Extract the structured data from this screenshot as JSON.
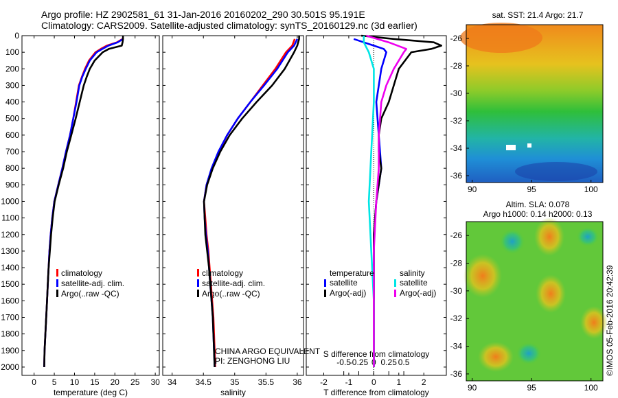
{
  "header": {
    "title_line1": "Argo profile: HZ 2902581_61 31-Jan-2016 20160202_290 30.501S 95.191E",
    "title_line2": "Climatology: CARS2009. Satellite-adjusted climatology: synTS_20160129.nc (3d earlier)"
  },
  "footer": {
    "credit": "©IMOS 05-Feb-2016 20:42:39",
    "institution_line1": "CHINA ARGO EQUIVALENT",
    "institution_line2": "PI: ZENGHONG LIU"
  },
  "colors": {
    "climatology": "#ff0000",
    "satellite": "#0000ff",
    "argo": "#000000",
    "salinity_satellite": "#00e5e5",
    "salinity_argo": "#ee00ee"
  },
  "chart_data": [
    {
      "id": "temperature",
      "type": "line",
      "xlabel": "temperature (deg C)",
      "ylabel": "",
      "xlim": [
        -3,
        31
      ],
      "ylim": [
        2050,
        0
      ],
      "x_ticks": [
        "0",
        "5",
        "10",
        "15",
        "20",
        "25",
        "30"
      ],
      "y_ticks": [
        "0",
        "100",
        "200",
        "300",
        "400",
        "500",
        "600",
        "700",
        "800",
        "900",
        "1000",
        "1100",
        "1200",
        "1300",
        "1400",
        "1500",
        "1600",
        "1700",
        "1800",
        "1900",
        "2000"
      ],
      "legend": [
        "climatology",
        "satellite-adj. clim.",
        "Argo(..raw -QC)"
      ],
      "legend_position": "lower-center",
      "series": [
        {
          "name": "climatology",
          "color": "#ff0000",
          "points": [
            [
              21.9,
              20
            ],
            [
              20.5,
              40
            ],
            [
              18.0,
              60
            ],
            [
              16.5,
              80
            ],
            [
              15.2,
              100
            ],
            [
              13.6,
              150
            ],
            [
              12.6,
              200
            ],
            [
              11.8,
              250
            ],
            [
              11.1,
              300
            ],
            [
              10.4,
              400
            ],
            [
              9.7,
              500
            ],
            [
              8.9,
              600
            ],
            [
              7.9,
              700
            ],
            [
              7.0,
              800
            ],
            [
              6.0,
              900
            ],
            [
              5.0,
              1000
            ],
            [
              4.5,
              1100
            ],
            [
              4.1,
              1200
            ],
            [
              3.8,
              1300
            ],
            [
              3.6,
              1400
            ],
            [
              3.4,
              1500
            ],
            [
              3.2,
              1600
            ],
            [
              3.0,
              1700
            ],
            [
              2.8,
              1800
            ],
            [
              2.6,
              1900
            ],
            [
              2.5,
              2000
            ]
          ]
        },
        {
          "name": "satellite-adj. clim.",
          "color": "#0000ff",
          "points": [
            [
              22.0,
              20
            ],
            [
              20.7,
              40
            ],
            [
              18.4,
              60
            ],
            [
              16.9,
              80
            ],
            [
              15.5,
              100
            ],
            [
              13.8,
              150
            ],
            [
              12.8,
              200
            ],
            [
              11.9,
              250
            ],
            [
              11.2,
              300
            ],
            [
              10.5,
              400
            ],
            [
              9.7,
              500
            ],
            [
              8.9,
              600
            ],
            [
              7.9,
              700
            ],
            [
              7.0,
              800
            ],
            [
              6.0,
              900
            ],
            [
              5.0,
              1000
            ],
            [
              4.5,
              1100
            ],
            [
              4.1,
              1200
            ],
            [
              3.8,
              1300
            ],
            [
              3.6,
              1400
            ],
            [
              3.4,
              1500
            ],
            [
              3.2,
              1600
            ],
            [
              3.0,
              1700
            ],
            [
              2.8,
              1800
            ],
            [
              2.6,
              1900
            ],
            [
              2.5,
              2000
            ]
          ]
        },
        {
          "name": "Argo(..raw -QC)",
          "color": "#000000",
          "points": [
            [
              22.0,
              0
            ],
            [
              22.0,
              20
            ],
            [
              21.9,
              40
            ],
            [
              21.7,
              60
            ],
            [
              18.5,
              80
            ],
            [
              17.0,
              100
            ],
            [
              15.0,
              150
            ],
            [
              13.8,
              200
            ],
            [
              13.0,
              250
            ],
            [
              12.3,
              300
            ],
            [
              11.3,
              400
            ],
            [
              10.3,
              500
            ],
            [
              9.2,
              600
            ],
            [
              8.1,
              700
            ],
            [
              7.2,
              800
            ],
            [
              6.1,
              900
            ],
            [
              5.1,
              1000
            ],
            [
              4.6,
              1100
            ],
            [
              4.2,
              1200
            ],
            [
              3.9,
              1300
            ],
            [
              3.6,
              1400
            ],
            [
              3.4,
              1500
            ],
            [
              3.2,
              1600
            ],
            [
              3.0,
              1700
            ],
            [
              2.8,
              1800
            ],
            [
              2.6,
              1900
            ],
            [
              2.5,
              2000
            ]
          ]
        }
      ]
    },
    {
      "id": "salinity",
      "type": "line",
      "xlabel": "salinity",
      "ylabel": "",
      "xlim": [
        33.85,
        36.1
      ],
      "ylim": [
        2050,
        0
      ],
      "x_ticks": [
        "34",
        "34.5",
        "35",
        "35.5",
        "36"
      ],
      "legend": [
        "climatology",
        "satellite-adj. clim.",
        "Argo(..raw -QC)"
      ],
      "legend_position": "lower-center",
      "series": [
        {
          "name": "climatology",
          "color": "#ff0000",
          "points": [
            [
              35.96,
              20
            ],
            [
              35.92,
              60
            ],
            [
              35.82,
              100
            ],
            [
              35.65,
              200
            ],
            [
              35.45,
              300
            ],
            [
              35.25,
              400
            ],
            [
              35.05,
              500
            ],
            [
              34.88,
              600
            ],
            [
              34.75,
              700
            ],
            [
              34.64,
              800
            ],
            [
              34.55,
              900
            ],
            [
              34.51,
              1000
            ],
            [
              34.53,
              1100
            ],
            [
              34.55,
              1200
            ],
            [
              34.58,
              1300
            ],
            [
              34.6,
              1400
            ],
            [
              34.62,
              1500
            ],
            [
              34.64,
              1600
            ],
            [
              34.66,
              1700
            ],
            [
              34.67,
              1800
            ],
            [
              34.68,
              1900
            ],
            [
              34.69,
              2000
            ]
          ]
        },
        {
          "name": "satellite-adj. clim.",
          "color": "#0000ff",
          "points": [
            [
              36.0,
              20
            ],
            [
              35.95,
              60
            ],
            [
              35.85,
              100
            ],
            [
              35.68,
              200
            ],
            [
              35.47,
              300
            ],
            [
              35.25,
              400
            ],
            [
              35.05,
              500
            ],
            [
              34.88,
              600
            ],
            [
              34.74,
              700
            ],
            [
              34.63,
              800
            ],
            [
              34.55,
              900
            ],
            [
              34.51,
              1000
            ],
            [
              34.52,
              1100
            ],
            [
              34.54,
              1200
            ],
            [
              34.57,
              1300
            ],
            [
              34.59,
              1400
            ],
            [
              34.61,
              1500
            ],
            [
              34.63,
              1600
            ],
            [
              34.65,
              1700
            ],
            [
              34.66,
              1800
            ],
            [
              34.67,
              1900
            ],
            [
              34.68,
              2000
            ]
          ]
        },
        {
          "name": "Argo(..raw -QC)",
          "color": "#000000",
          "points": [
            [
              36.03,
              0
            ],
            [
              36.03,
              20
            ],
            [
              36.0,
              60
            ],
            [
              35.95,
              100
            ],
            [
              35.8,
              200
            ],
            [
              35.6,
              300
            ],
            [
              35.35,
              400
            ],
            [
              35.12,
              500
            ],
            [
              34.92,
              600
            ],
            [
              34.77,
              700
            ],
            [
              34.65,
              800
            ],
            [
              34.56,
              900
            ],
            [
              34.51,
              1000
            ],
            [
              34.52,
              1100
            ],
            [
              34.53,
              1200
            ],
            [
              34.56,
              1300
            ],
            [
              34.59,
              1400
            ],
            [
              34.61,
              1500
            ],
            [
              34.63,
              1600
            ],
            [
              34.65,
              1700
            ],
            [
              34.66,
              1800
            ],
            [
              34.67,
              1900
            ],
            [
              34.68,
              2000
            ]
          ]
        }
      ]
    },
    {
      "id": "differences",
      "type": "line",
      "xlabel": "T difference from climatology",
      "xlabel_top": "S difference from climatology",
      "ylabel": "",
      "xlim": [
        -2.7,
        2.9
      ],
      "ylim": [
        2050,
        0
      ],
      "x_ticks": [
        "-2",
        "-1",
        "0",
        "1",
        "2"
      ],
      "x_ticks_top": [
        "-0.5",
        "-0.25",
        "0",
        "0.25",
        "0.5"
      ],
      "legend": [
        "temperature",
        "satellite",
        "Argo(-adj)",
        "salinity",
        "satellite",
        "Argo(-adj)"
      ],
      "legend_position": "lower-center",
      "series": [
        {
          "name": "satellite",
          "group": "temperature",
          "color": "#0000ff",
          "points": [
            [
              -0.8,
              20
            ],
            [
              -0.4,
              40
            ],
            [
              0.0,
              60
            ],
            [
              0.4,
              80
            ],
            [
              0.5,
              100
            ],
            [
              0.3,
              200
            ],
            [
              0.1,
              400
            ],
            [
              0.2,
              600
            ],
            [
              0.3,
              800
            ],
            [
              0.1,
              1000
            ],
            [
              0.0,
              1200
            ],
            [
              0.0,
              1500
            ],
            [
              0.0,
              2000
            ]
          ]
        },
        {
          "name": "Argo(-adj)",
          "group": "temperature",
          "color": "#000000",
          "points": [
            [
              -0.5,
              0
            ],
            [
              0.8,
              20
            ],
            [
              2.4,
              40
            ],
            [
              2.7,
              60
            ],
            [
              2.3,
              80
            ],
            [
              1.5,
              100
            ],
            [
              1.0,
              200
            ],
            [
              0.8,
              300
            ],
            [
              0.6,
              400
            ],
            [
              0.3,
              500
            ],
            [
              0.2,
              600
            ],
            [
              0.2,
              700
            ],
            [
              0.3,
              800
            ],
            [
              0.2,
              900
            ],
            [
              0.1,
              1000
            ],
            [
              0.05,
              1100
            ],
            [
              0.0,
              1200
            ],
            [
              0.0,
              1400
            ],
            [
              0.0,
              1600
            ],
            [
              0.0,
              1800
            ],
            [
              0.0,
              2000
            ]
          ]
        },
        {
          "name": "satellite",
          "group": "salinity",
          "color": "#00e5e5",
          "points": [
            [
              -0.4,
              0
            ],
            [
              -0.4,
              40
            ],
            [
              -0.2,
              100
            ],
            [
              0.0,
              200
            ],
            [
              0.0,
              400
            ],
            [
              -0.1,
              700
            ],
            [
              -0.2,
              1000
            ],
            [
              -0.1,
              1300
            ],
            [
              0.0,
              1600
            ],
            [
              0.0,
              2000
            ]
          ]
        },
        {
          "name": "Argo(-adj)",
          "group": "salinity",
          "color": "#ee00ee",
          "points": [
            [
              -0.3,
              0
            ],
            [
              0.6,
              40
            ],
            [
              1.3,
              80
            ],
            [
              1.2,
              100
            ],
            [
              0.8,
              200
            ],
            [
              0.5,
              300
            ],
            [
              0.3,
              400
            ],
            [
              0.2,
              600
            ],
            [
              0.2,
              800
            ],
            [
              0.1,
              1000
            ],
            [
              0.0,
              1300
            ],
            [
              0.0,
              2000
            ]
          ]
        }
      ]
    },
    {
      "id": "sst-map",
      "type": "heatmap",
      "title": "sat. SST: 21.4  Argo: 21.7",
      "x_ticks": [
        "90",
        "95",
        "100"
      ],
      "y_ticks": [
        "-26",
        "-28",
        "-30",
        "-32",
        "-34",
        "-36"
      ],
      "xlim": [
        89.5,
        101
      ],
      "ylim": [
        -36.5,
        -25
      ]
    },
    {
      "id": "sla-map",
      "type": "heatmap",
      "title_line1": "Altim. SLA: 0.078",
      "title_line2": "Argo h1000: 0.14 h2000: 0.13",
      "x_ticks": [
        "90",
        "95",
        "100"
      ],
      "y_ticks": [
        "-26",
        "-28",
        "-30",
        "-32",
        "-34",
        "-36"
      ],
      "xlim": [
        89.5,
        101
      ],
      "ylim": [
        -36.5,
        -25
      ]
    }
  ]
}
